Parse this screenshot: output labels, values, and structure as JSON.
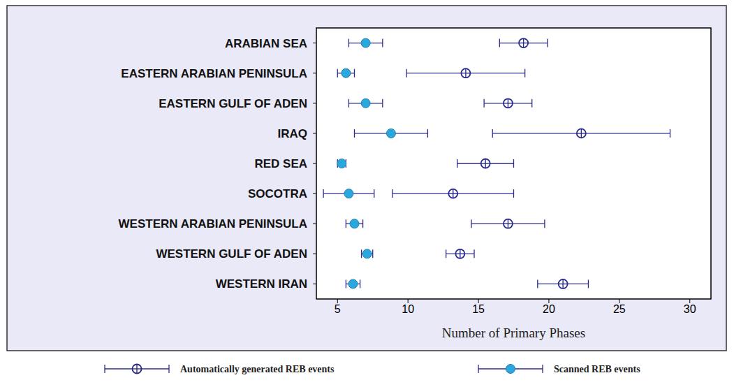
{
  "chart_data": {
    "type": "scatter",
    "orientation": "horizontal",
    "x_label": "Number of Primary Phases",
    "categories": [
      "ARABIAN SEA",
      "EASTERN ARABIAN PENINSULA",
      "EASTERN GULF OF ADEN",
      "IRAQ",
      "RED SEA",
      "SOCOTRA",
      "WESTERN ARABIAN PENINSULA",
      "WESTERN GULF OF ADEN",
      "WESTERN IRAN"
    ],
    "series": [
      {
        "name": "Automatically generated REB events",
        "color": "#2b2b8c",
        "marker": "circle-cross",
        "values": [
          18.2,
          14.1,
          17.1,
          22.3,
          15.5,
          13.2,
          17.1,
          13.7,
          21.0
        ],
        "errors": [
          1.7,
          4.2,
          1.7,
          6.3,
          2.0,
          4.3,
          2.6,
          1.0,
          1.8
        ]
      },
      {
        "name": "Scanned REB events",
        "color": "#2aa7dc",
        "marker": "circle",
        "values": [
          7.0,
          5.6,
          7.0,
          8.8,
          5.3,
          5.8,
          6.2,
          7.1,
          6.1
        ],
        "errors": [
          1.2,
          0.6,
          1.2,
          2.6,
          0.3,
          1.8,
          0.6,
          0.4,
          0.5
        ]
      }
    ],
    "xlim": [
      3.5,
      31.5
    ],
    "xticks": [
      5,
      10,
      15,
      20,
      25,
      30
    ],
    "legend": "bottom",
    "grid": false
  }
}
